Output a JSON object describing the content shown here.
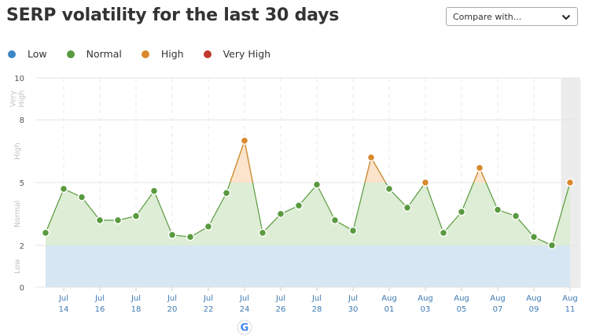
{
  "header": {
    "title": "SERP volatility for the last 30 days",
    "compare_label": "Compare with..."
  },
  "legend": [
    {
      "label": "Low",
      "color": "#3d86c6"
    },
    {
      "label": "Normal",
      "color": "#5a9a3f"
    },
    {
      "label": "High",
      "color": "#d9892c"
    },
    {
      "label": "Very High",
      "color": "#c0392b"
    }
  ],
  "chart_data": {
    "type": "area",
    "title": "SERP volatility for the last 30 days",
    "ylim": [
      0,
      10
    ],
    "yticks": [
      0,
      2,
      5,
      8,
      10
    ],
    "bands": [
      {
        "name": "Low",
        "from": 0,
        "to": 2
      },
      {
        "name": "Normal",
        "from": 2,
        "to": 5
      },
      {
        "name": "High",
        "from": 5,
        "to": 8
      },
      {
        "name": "Very High",
        "from": 8,
        "to": 10
      }
    ],
    "x": [
      "Jul 13",
      "Jul 14",
      "Jul 15",
      "Jul 16",
      "Jul 17",
      "Jul 18",
      "Jul 19",
      "Jul 20",
      "Jul 21",
      "Jul 22",
      "Jul 23",
      "Jul 24",
      "Jul 25",
      "Jul 26",
      "Jul 27",
      "Jul 28",
      "Jul 29",
      "Jul 30",
      "Jul 31",
      "Aug 01",
      "Aug 02",
      "Aug 03",
      "Aug 04",
      "Aug 05",
      "Aug 06",
      "Aug 07",
      "Aug 08",
      "Aug 09",
      "Aug 10",
      "Aug 11"
    ],
    "values": [
      2.6,
      4.7,
      4.3,
      3.2,
      3.2,
      3.4,
      4.6,
      2.5,
      2.4,
      2.9,
      4.5,
      7.0,
      2.6,
      3.5,
      3.9,
      4.9,
      3.2,
      2.7,
      6.2,
      4.7,
      3.8,
      5.0,
      2.6,
      3.6,
      5.7,
      3.7,
      3.4,
      2.4,
      2.0,
      5.0
    ],
    "xtick_labels": [
      {
        "month": "Jul",
        "day": "14"
      },
      {
        "month": "Jul",
        "day": "16"
      },
      {
        "month": "Jul",
        "day": "18"
      },
      {
        "month": "Jul",
        "day": "20"
      },
      {
        "month": "Jul",
        "day": "22"
      },
      {
        "month": "Jul",
        "day": "24"
      },
      {
        "month": "Jul",
        "day": "26"
      },
      {
        "month": "Jul",
        "day": "28"
      },
      {
        "month": "Jul",
        "day": "30"
      },
      {
        "month": "Aug",
        "day": "01"
      },
      {
        "month": "Aug",
        "day": "03"
      },
      {
        "month": "Aug",
        "day": "05"
      },
      {
        "month": "Aug",
        "day": "07"
      },
      {
        "month": "Aug",
        "day": "09"
      },
      {
        "month": "Aug",
        "day": "11"
      }
    ],
    "annotation": {
      "date": "Jul 24",
      "icon": "google-icon"
    },
    "highlight_last": true,
    "colors": {
      "low_fill": "#d6e6f2",
      "normal_fill": "#deedd6",
      "high_fill": "#fbe3cc",
      "line": "#5a9a3f",
      "normal_dot": "#5a9a3f",
      "high_dot": "#d9892c"
    }
  }
}
